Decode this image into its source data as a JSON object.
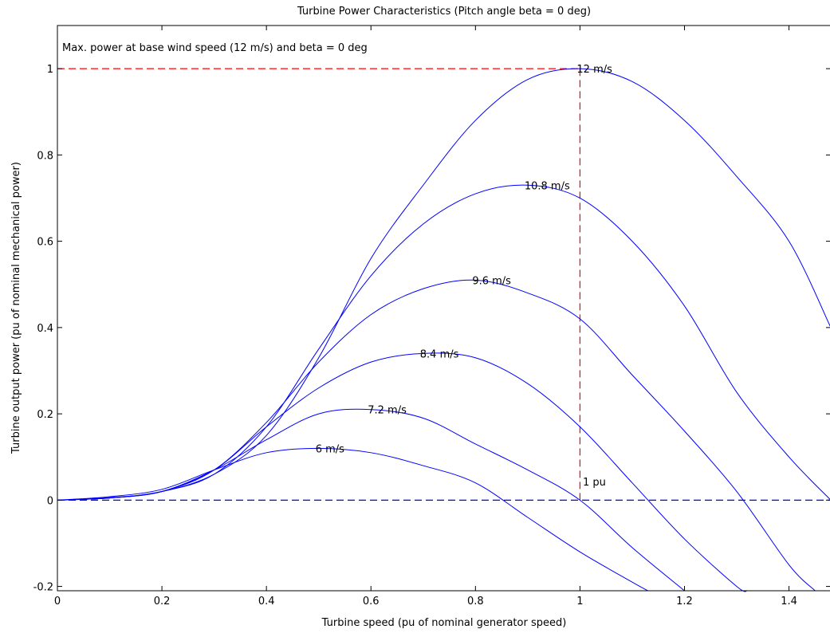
{
  "chart_data": {
    "type": "line",
    "title": "Turbine Power Characteristics (Pitch angle beta = 0 deg)",
    "xlabel": "Turbine speed (pu of nominal generator speed)",
    "ylabel": "Turbine output power (pu of nominal mechanical power)",
    "xlim": [
      0,
      1.48
    ],
    "ylim": [
      -0.21,
      1.1
    ],
    "xticks": [
      0,
      0.2,
      0.4,
      0.6,
      0.8,
      1,
      1.2,
      1.4
    ],
    "xtick_labels": [
      "0",
      "0.2",
      "0.4",
      "0.6",
      "0.8",
      "1",
      "1.2",
      "1.4"
    ],
    "yticks": [
      -0.2,
      0,
      0.2,
      0.4,
      0.6,
      0.8,
      1
    ],
    "ytick_labels": [
      "-0.2",
      "0",
      "0.2",
      "0.4",
      "0.6",
      "0.8",
      "1"
    ],
    "grid": false,
    "annotation_text": "Max. power at base wind speed (12 m/s) and beta = 0 deg",
    "pu_marker_label": "1 pu",
    "reference_lines": [
      {
        "kind": "horizontal",
        "y": 1.0,
        "x_from": 0,
        "x_to": 1.0,
        "style": "dashed",
        "color": "#ff0000"
      },
      {
        "kind": "vertical",
        "x": 1.0,
        "y_from": 0,
        "y_to": 1.0,
        "style": "dashed",
        "color": "#ff0000"
      },
      {
        "kind": "horizontal",
        "y": 0,
        "x_from": 0,
        "x_to": 1.48,
        "style": "dashed",
        "color": "#0000ff"
      }
    ],
    "series_color": "#0000ff",
    "series": [
      {
        "name": "12 m/s",
        "label_at": [
          1.0,
          1.0
        ],
        "x": [
          0,
          0.1,
          0.2,
          0.3,
          0.4,
          0.5,
          0.6,
          0.7,
          0.8,
          0.9,
          1.0,
          1.1,
          1.2,
          1.3,
          1.4,
          1.48
        ],
        "y": [
          0,
          0.005,
          0.02,
          0.06,
          0.15,
          0.33,
          0.56,
          0.73,
          0.88,
          0.975,
          1.0,
          0.97,
          0.88,
          0.75,
          0.6,
          0.4
        ]
      },
      {
        "name": "10.8 m/s",
        "label_at": [
          0.9,
          0.73
        ],
        "x": [
          0,
          0.1,
          0.2,
          0.3,
          0.4,
          0.5,
          0.6,
          0.7,
          0.8,
          0.9,
          1.0,
          1.1,
          1.2,
          1.3,
          1.4,
          1.48
        ],
        "y": [
          0,
          0.005,
          0.02,
          0.06,
          0.17,
          0.35,
          0.52,
          0.64,
          0.71,
          0.73,
          0.7,
          0.6,
          0.45,
          0.25,
          0.1,
          0.0
        ]
      },
      {
        "name": "9.6 m/s",
        "label_at": [
          0.8,
          0.51
        ],
        "x": [
          0,
          0.1,
          0.2,
          0.3,
          0.4,
          0.5,
          0.6,
          0.7,
          0.8,
          0.9,
          1.0,
          1.1,
          1.2,
          1.3,
          1.4,
          1.45
        ],
        "y": [
          0,
          0.005,
          0.02,
          0.07,
          0.18,
          0.32,
          0.43,
          0.49,
          0.51,
          0.48,
          0.42,
          0.29,
          0.16,
          0.02,
          -0.15,
          -0.21
        ]
      },
      {
        "name": "8.4 m/s",
        "label_at": [
          0.7,
          0.34
        ],
        "x": [
          0,
          0.1,
          0.2,
          0.3,
          0.4,
          0.5,
          0.6,
          0.7,
          0.8,
          0.9,
          1.0,
          1.1,
          1.2,
          1.3,
          1.32
        ],
        "y": [
          0,
          0.005,
          0.02,
          0.07,
          0.17,
          0.26,
          0.32,
          0.34,
          0.33,
          0.27,
          0.17,
          0.04,
          -0.09,
          -0.2,
          -0.21
        ]
      },
      {
        "name": "7.2 m/s",
        "label_at": [
          0.6,
          0.21
        ],
        "x": [
          0,
          0.1,
          0.2,
          0.3,
          0.4,
          0.5,
          0.6,
          0.7,
          0.8,
          0.9,
          1.0,
          1.1,
          1.2
        ],
        "y": [
          0,
          0.006,
          0.02,
          0.07,
          0.14,
          0.2,
          0.21,
          0.19,
          0.13,
          0.07,
          0.0,
          -0.11,
          -0.21
        ]
      },
      {
        "name": "6 m/s",
        "label_at": [
          0.5,
          0.12
        ],
        "x": [
          0,
          0.1,
          0.2,
          0.3,
          0.4,
          0.5,
          0.6,
          0.7,
          0.8,
          0.9,
          1.0,
          1.1,
          1.13
        ],
        "y": [
          0,
          0.008,
          0.025,
          0.07,
          0.11,
          0.12,
          0.11,
          0.08,
          0.04,
          -0.04,
          -0.12,
          -0.19,
          -0.21
        ]
      }
    ]
  }
}
